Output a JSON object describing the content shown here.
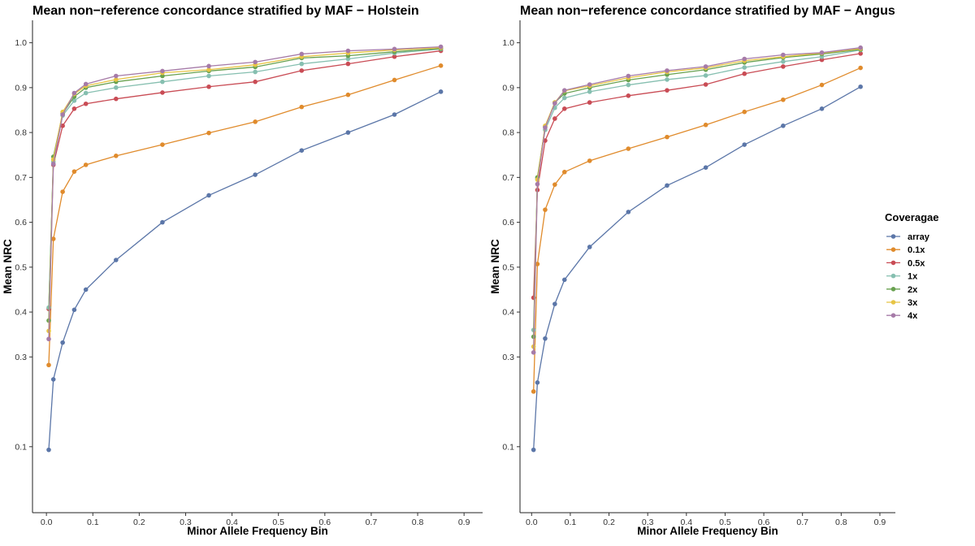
{
  "chart_data": [
    {
      "type": "line",
      "title": "Mean non−reference concordance stratified by MAF − Holstein",
      "xlabel": "Minor Allele Frequency Bin",
      "ylabel": "Mean NRC",
      "xlim": [
        -0.03,
        0.94
      ],
      "ylim": [
        -0.047,
        1.05
      ],
      "xticks": [
        0.0,
        0.1,
        0.2,
        0.3,
        0.4,
        0.5,
        0.6,
        0.7,
        0.8,
        0.9
      ],
      "xtick_labels": [
        "0.0",
        "0.1",
        "0.2",
        "0.3",
        "0.4",
        "0.5",
        "0.6",
        "0.7",
        "0.8",
        "0.9"
      ],
      "yticks": [
        0.1,
        0.3,
        0.4,
        0.5,
        0.6,
        0.7,
        0.8,
        0.9,
        1.0
      ],
      "ytick_labels": [
        "0.1",
        "0.3",
        "0.4",
        "0.5",
        "0.6",
        "0.7",
        "0.8",
        "0.9",
        "1.0"
      ],
      "grid": false,
      "x": [
        0.005,
        0.015,
        0.035,
        0.06,
        0.085,
        0.15,
        0.25,
        0.35,
        0.45,
        0.55,
        0.65,
        0.75,
        0.85
      ],
      "series": [
        {
          "name": "array",
          "values": [
            0.093,
            0.25,
            0.332,
            0.405,
            0.45,
            0.516,
            0.6,
            0.66,
            0.706,
            0.76,
            0.8,
            0.84,
            0.891
          ]
        },
        {
          "name": "0.1x",
          "values": [
            0.282,
            0.563,
            0.668,
            0.713,
            0.728,
            0.748,
            0.773,
            0.799,
            0.824,
            0.857,
            0.884,
            0.917,
            0.949
          ]
        },
        {
          "name": "0.5x",
          "values": [
            0.407,
            0.728,
            0.815,
            0.853,
            0.864,
            0.875,
            0.889,
            0.902,
            0.913,
            0.938,
            0.953,
            0.969,
            0.982
          ]
        },
        {
          "name": "1x",
          "values": [
            0.41,
            0.735,
            0.838,
            0.871,
            0.888,
            0.9,
            0.913,
            0.926,
            0.935,
            0.953,
            0.964,
            0.977,
            0.986
          ]
        },
        {
          "name": "2x",
          "values": [
            0.381,
            0.746,
            0.842,
            0.88,
            0.9,
            0.913,
            0.926,
            0.937,
            0.946,
            0.966,
            0.971,
            0.98,
            0.987
          ]
        },
        {
          "name": "3x",
          "values": [
            0.358,
            0.74,
            0.846,
            0.886,
            0.904,
            0.918,
            0.933,
            0.94,
            0.951,
            0.969,
            0.977,
            0.984,
            0.989
          ]
        },
        {
          "name": "4x",
          "values": [
            0.34,
            0.73,
            0.84,
            0.888,
            0.908,
            0.926,
            0.937,
            0.948,
            0.957,
            0.975,
            0.982,
            0.986,
            0.991
          ]
        }
      ]
    },
    {
      "type": "line",
      "title": "Mean non−reference concordance stratified by MAF − Angus",
      "xlabel": "Minor Allele Frequency Bin",
      "ylabel": "Mean NRC",
      "xlim": [
        -0.03,
        0.94
      ],
      "ylim": [
        -0.047,
        1.05
      ],
      "xticks": [
        0.0,
        0.1,
        0.2,
        0.3,
        0.4,
        0.5,
        0.6,
        0.7,
        0.8,
        0.9
      ],
      "xtick_labels": [
        "0.0",
        "0.1",
        "0.2",
        "0.3",
        "0.4",
        "0.5",
        "0.6",
        "0.7",
        "0.8",
        "0.9"
      ],
      "yticks": [
        0.1,
        0.3,
        0.4,
        0.5,
        0.6,
        0.7,
        0.8,
        0.9,
        1.0
      ],
      "ytick_labels": [
        "0.1",
        "0.3",
        "0.4",
        "0.5",
        "0.6",
        "0.7",
        "0.8",
        "0.9",
        "1.0"
      ],
      "grid": false,
      "x": [
        0.005,
        0.015,
        0.035,
        0.06,
        0.085,
        0.15,
        0.25,
        0.35,
        0.45,
        0.55,
        0.65,
        0.75,
        0.85
      ],
      "series": [
        {
          "name": "array",
          "values": [
            0.093,
            0.243,
            0.341,
            0.418,
            0.472,
            0.545,
            0.623,
            0.682,
            0.722,
            0.773,
            0.815,
            0.853,
            0.902
          ]
        },
        {
          "name": "0.1x",
          "values": [
            0.223,
            0.507,
            0.628,
            0.684,
            0.712,
            0.737,
            0.764,
            0.79,
            0.817,
            0.846,
            0.873,
            0.906,
            0.944
          ]
        },
        {
          "name": "0.5x",
          "values": [
            0.432,
            0.672,
            0.782,
            0.831,
            0.853,
            0.867,
            0.882,
            0.894,
            0.907,
            0.931,
            0.947,
            0.962,
            0.976
          ]
        },
        {
          "name": "1x",
          "values": [
            0.36,
            0.697,
            0.806,
            0.855,
            0.877,
            0.891,
            0.906,
            0.918,
            0.927,
            0.945,
            0.958,
            0.969,
            0.984
          ]
        },
        {
          "name": "2x",
          "values": [
            0.345,
            0.7,
            0.813,
            0.867,
            0.887,
            0.9,
            0.917,
            0.929,
            0.94,
            0.956,
            0.967,
            0.975,
            0.985
          ]
        },
        {
          "name": "3x",
          "values": [
            0.323,
            0.695,
            0.815,
            0.867,
            0.893,
            0.904,
            0.922,
            0.935,
            0.944,
            0.96,
            0.969,
            0.977,
            0.987
          ]
        },
        {
          "name": "4x",
          "values": [
            0.31,
            0.685,
            0.811,
            0.865,
            0.894,
            0.907,
            0.926,
            0.938,
            0.947,
            0.964,
            0.973,
            0.978,
            0.989
          ]
        }
      ]
    }
  ],
  "legend": {
    "title": "Coveragae",
    "placement": "right",
    "items": [
      "array",
      "0.1x",
      "0.5x",
      "1x",
      "2x",
      "3x",
      "4x"
    ]
  },
  "colors": {
    "array": "#5b76a8",
    "0.1x": "#e08b2c",
    "0.5x": "#c94c55",
    "1x": "#86bfb0",
    "2x": "#68a14f",
    "3x": "#e7c444",
    "4x": "#a67ba8"
  }
}
